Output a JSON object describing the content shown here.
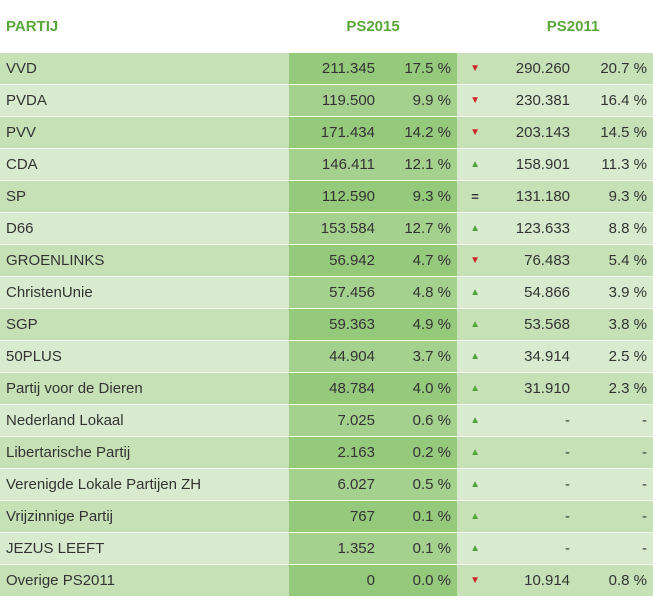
{
  "header": {
    "party": "PARTIJ",
    "ps2015": "PS2015",
    "ps2011": "PS2011"
  },
  "rows": [
    {
      "party": "VVD",
      "votes2015": "211.345",
      "pct2015": "17.5 %",
      "trend": "down",
      "votes2011": "290.260",
      "pct2011": "20.7 %"
    },
    {
      "party": "PVDA",
      "votes2015": "119.500",
      "pct2015": "9.9 %",
      "trend": "down",
      "votes2011": "230.381",
      "pct2011": "16.4 %"
    },
    {
      "party": "PVV",
      "votes2015": "171.434",
      "pct2015": "14.2 %",
      "trend": "down",
      "votes2011": "203.143",
      "pct2011": "14.5 %"
    },
    {
      "party": "CDA",
      "votes2015": "146.411",
      "pct2015": "12.1 %",
      "trend": "up",
      "votes2011": "158.901",
      "pct2011": "11.3 %"
    },
    {
      "party": "SP",
      "votes2015": "112.590",
      "pct2015": "9.3 %",
      "trend": "equal",
      "votes2011": "131.180",
      "pct2011": "9.3 %"
    },
    {
      "party": "D66",
      "votes2015": "153.584",
      "pct2015": "12.7 %",
      "trend": "up",
      "votes2011": "123.633",
      "pct2011": "8.8 %"
    },
    {
      "party": "GROENLINKS",
      "votes2015": "56.942",
      "pct2015": "4.7 %",
      "trend": "down",
      "votes2011": "76.483",
      "pct2011": "5.4 %"
    },
    {
      "party": "ChristenUnie",
      "votes2015": "57.456",
      "pct2015": "4.8 %",
      "trend": "up",
      "votes2011": "54.866",
      "pct2011": "3.9 %"
    },
    {
      "party": "SGP",
      "votes2015": "59.363",
      "pct2015": "4.9 %",
      "trend": "up",
      "votes2011": "53.568",
      "pct2011": "3.8 %"
    },
    {
      "party": "50PLUS",
      "votes2015": "44.904",
      "pct2015": "3.7 %",
      "trend": "up",
      "votes2011": "34.914",
      "pct2011": "2.5 %"
    },
    {
      "party": "Partij voor de Dieren",
      "votes2015": "48.784",
      "pct2015": "4.0 %",
      "trend": "up",
      "votes2011": "31.910",
      "pct2011": "2.3 %"
    },
    {
      "party": "Nederland Lokaal",
      "votes2015": "7.025",
      "pct2015": "0.6 %",
      "trend": "up",
      "votes2011": "-",
      "pct2011": "-"
    },
    {
      "party": "Libertarische Partij",
      "votes2015": "2.163",
      "pct2015": "0.2 %",
      "trend": "up",
      "votes2011": "-",
      "pct2011": "-"
    },
    {
      "party": "Verenigde Lokale Partijen ZH",
      "votes2015": "6.027",
      "pct2015": "0.5 %",
      "trend": "up",
      "votes2011": "-",
      "pct2011": "-"
    },
    {
      "party": "Vrijzinnige Partij",
      "votes2015": "767",
      "pct2015": "0.1 %",
      "trend": "up",
      "votes2011": "-",
      "pct2011": "-"
    },
    {
      "party": "JEZUS LEEFT",
      "votes2015": "1.352",
      "pct2015": "0.1 %",
      "trend": "up",
      "votes2011": "-",
      "pct2011": "-"
    },
    {
      "party": "Overige PS2011",
      "votes2015": "0",
      "pct2015": "0.0 %",
      "trend": "down",
      "votes2011": "10.914",
      "pct2011": "0.8 %"
    }
  ],
  "trend_icons": {
    "up": "triangle-up-icon",
    "down": "triangle-down-icon",
    "equal": "equals-icon"
  },
  "trend_glyphs": {
    "up": "▲",
    "down": "▼",
    "equal": "="
  },
  "colors": {
    "header_text": "#5aa83c",
    "row_light_odd": "#c6e1b5",
    "row_light_even": "#d9ebcf",
    "row_dark_odd": "#95c97b",
    "row_dark_even": "#a5d18f",
    "trend_up": "#4fa33a",
    "trend_down": "#d0262e"
  }
}
